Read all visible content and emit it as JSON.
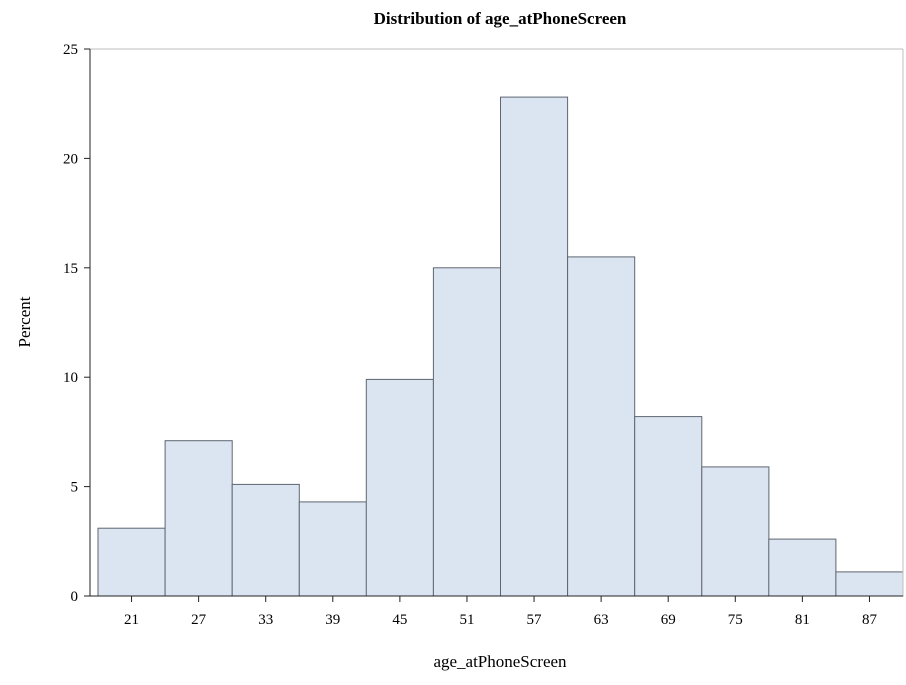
{
  "chart_data": {
    "type": "bar",
    "title": "Distribution of age_atPhoneScreen",
    "xlabel": "age_atPhoneScreen",
    "ylabel": "Percent",
    "categories": [
      "21",
      "27",
      "33",
      "39",
      "45",
      "51",
      "57",
      "63",
      "69",
      "75",
      "81",
      "87"
    ],
    "values": [
      3.1,
      7.1,
      5.1,
      4.3,
      9.9,
      15.0,
      22.8,
      15.5,
      8.2,
      5.9,
      2.6,
      1.1
    ],
    "ylim": [
      0,
      25
    ],
    "yticks": [
      "0",
      "5",
      "10",
      "15",
      "20",
      "25"
    ],
    "grid": false,
    "bar_color": "#dbe5f2",
    "bar_edge_color": "#5f6670"
  }
}
